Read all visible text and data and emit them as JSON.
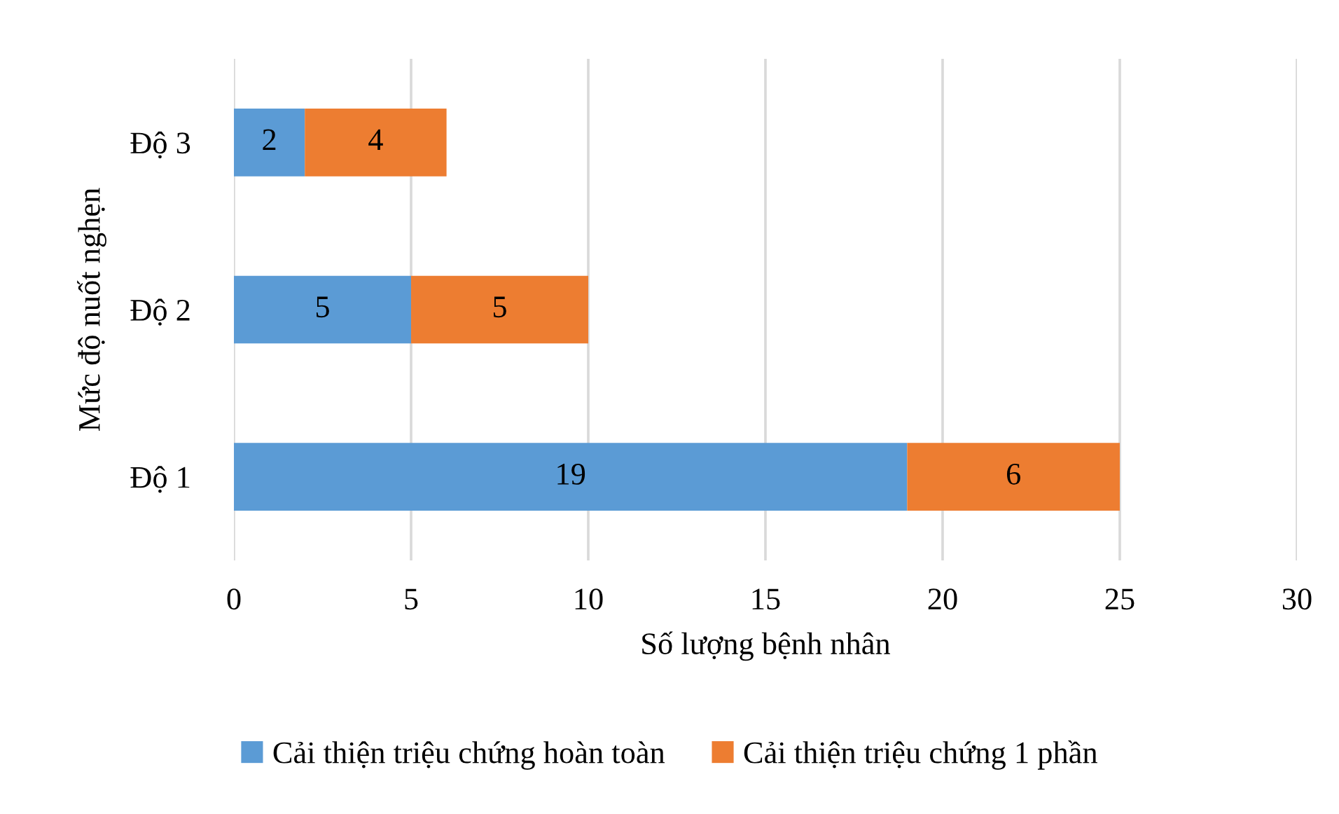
{
  "chart_data": {
    "type": "bar",
    "orientation": "horizontal",
    "stacked": true,
    "categories": [
      "Độ 3",
      "Độ 2",
      "Độ 1"
    ],
    "series": [
      {
        "name": "Cải thiện triệu chứng hoàn toàn",
        "color": "#5b9bd5",
        "values": [
          2,
          5,
          19
        ]
      },
      {
        "name": "Cải thiện triệu chứng 1 phần",
        "color": "#ed7d31",
        "values": [
          4,
          5,
          6
        ]
      }
    ],
    "xlim": [
      0,
      30
    ],
    "xticks": [
      0,
      5,
      10,
      15,
      20,
      25,
      30
    ],
    "xlabel": "Số lượng bệnh nhân",
    "ylabel": "Mức độ nuốt nghẹn",
    "grid": "x",
    "legend": "bottom",
    "data_labels": true
  }
}
